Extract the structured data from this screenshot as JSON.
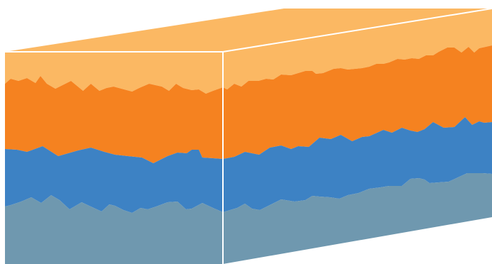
{
  "diagram": {
    "type": "layered-block",
    "layers": [
      {
        "id": "layer-1",
        "color": "#FBB863"
      },
      {
        "id": "layer-2",
        "color": "#F58220"
      },
      {
        "id": "layer-3",
        "color": "#3D82C4"
      },
      {
        "id": "layer-4",
        "color": "#6F98AF"
      }
    ],
    "edge_color": "#FFFFFF"
  }
}
